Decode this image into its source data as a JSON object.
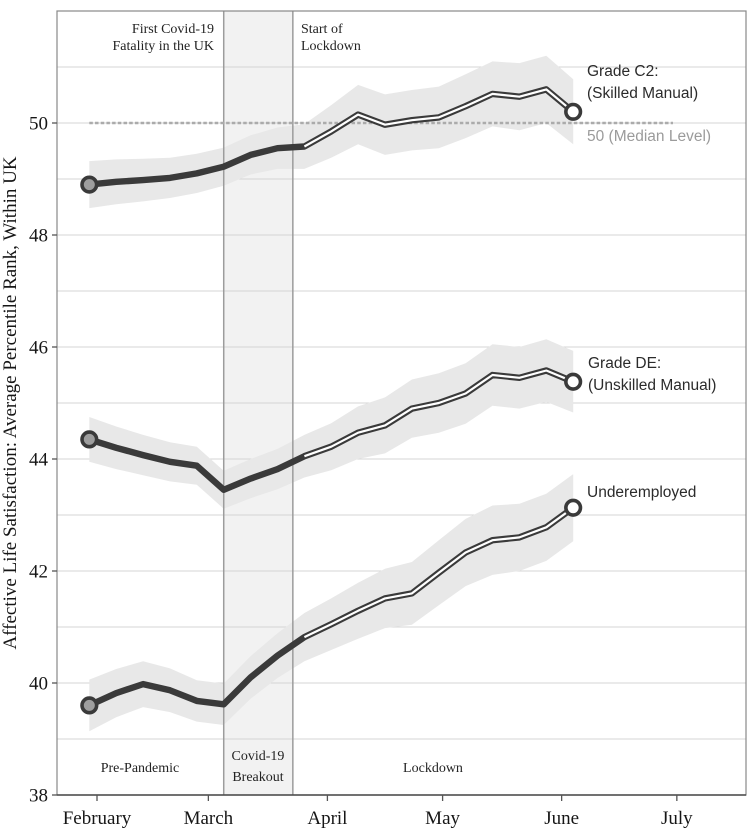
{
  "chart_data": {
    "type": "line",
    "title": "",
    "xlabel": "",
    "ylabel": "Affective Life Satisfaction: Average Percentile Rank, Within UK",
    "ylim": [
      38,
      52
    ],
    "y_ticks": [
      38,
      40,
      42,
      44,
      46,
      48,
      50
    ],
    "grid": "horizontal gridlines every 1 unit from 39 to 51",
    "x_tick_labels": [
      "February",
      "March",
      "April",
      "May",
      "June",
      "July"
    ],
    "x_tick_days": [
      0,
      29,
      60,
      90,
      121,
      151
    ],
    "x_unit": "weekly observations, early 2020",
    "x_dates": [
      "Jan 30",
      "Feb 6",
      "Feb 13",
      "Feb 20",
      "Feb 27",
      "Mar 5",
      "Mar 12",
      "Mar 19",
      "Mar 26",
      "Apr 2",
      "Apr 9",
      "Apr 16",
      "Apr 23",
      "Apr 30",
      "May 7",
      "May 14",
      "May 21",
      "May 28",
      "Jun 4"
    ],
    "x_days": [
      -2,
      5,
      12,
      19,
      26,
      33,
      40,
      47,
      54,
      61,
      68,
      75,
      82,
      89,
      96,
      103,
      110,
      117,
      124
    ],
    "series": [
      {
        "name": "Grade C2: (Skilled Manual)",
        "label_lines": [
          "Grade C2:",
          "(Skilled Manual)"
        ],
        "values": [
          48.9,
          48.95,
          48.98,
          49.02,
          49.1,
          49.22,
          49.43,
          49.55,
          49.58,
          49.85,
          50.15,
          49.97,
          50.05,
          50.1,
          50.3,
          50.52,
          50.47,
          50.6,
          50.2
        ],
        "ci_halfwidth": [
          0.42,
          0.4,
          0.38,
          0.36,
          0.35,
          0.34,
          0.35,
          0.37,
          0.4,
          0.47,
          0.53,
          0.54,
          0.54,
          0.55,
          0.57,
          0.58,
          0.6,
          0.6,
          0.58
        ]
      },
      {
        "name": "Grade DE: (Unskilled Manual)",
        "label_lines": [
          "Grade DE:",
          "(Unskilled Manual)"
        ],
        "values": [
          44.35,
          44.2,
          44.07,
          43.95,
          43.88,
          43.45,
          43.65,
          43.82,
          44.05,
          44.22,
          44.47,
          44.6,
          44.9,
          45.0,
          45.17,
          45.5,
          45.45,
          45.58,
          45.38
        ],
        "ci_halfwidth": [
          0.4,
          0.38,
          0.36,
          0.35,
          0.34,
          0.34,
          0.35,
          0.36,
          0.38,
          0.42,
          0.47,
          0.5,
          0.52,
          0.53,
          0.54,
          0.55,
          0.55,
          0.56,
          0.55
        ]
      },
      {
        "name": "Underemployed",
        "label_lines": [
          "Underemployed"
        ],
        "values": [
          39.6,
          39.82,
          39.98,
          39.87,
          39.68,
          39.62,
          40.1,
          40.49,
          40.82,
          41.05,
          41.29,
          41.51,
          41.6,
          41.97,
          42.33,
          42.55,
          42.6,
          42.78,
          43.13
        ],
        "ci_halfwidth": [
          0.46,
          0.43,
          0.41,
          0.39,
          0.37,
          0.37,
          0.38,
          0.4,
          0.43,
          0.46,
          0.5,
          0.53,
          0.56,
          0.58,
          0.6,
          0.62,
          0.6,
          0.6,
          0.6
        ]
      }
    ],
    "reference_line": {
      "value": 50,
      "label": "50 (Median Level)",
      "style": "dashed",
      "from_day": -2,
      "to_day": 150
    },
    "events": [
      {
        "label_lines": [
          "First Covid-19",
          "Fatality in the UK"
        ],
        "day": 33
      },
      {
        "label_lines": [
          "Start of",
          "Lockdown"
        ],
        "day": 51
      }
    ],
    "periods": [
      {
        "label_lines": [
          "Pre-Pandemic"
        ],
        "from_day": -10.4,
        "to_day": 33,
        "shaded": false
      },
      {
        "label_lines": [
          "Covid-19",
          "Breakout"
        ],
        "from_day": 33,
        "to_day": 51,
        "shaded": true
      },
      {
        "label_lines": [
          "Lockdown"
        ],
        "from_day": 51,
        "to_day": 124,
        "shaded": false
      }
    ],
    "line_style_note": "lines solid before lockdown, white-cored double line after; gray-filled circle at first point, white-filled circle at last point",
    "legend_position": "labels at right end of each line",
    "colors": {
      "line": "#3a3a3a",
      "band": "#e8e8e8",
      "shaded_region": "#f2f2f2",
      "event_line": "#9c9c9c",
      "grid": "#d4d4d4",
      "border": "#888888",
      "axis": "#555555",
      "median_line": "#ababab",
      "median_label": "#9b9b9b",
      "start_marker_fill": "#9e9e9e",
      "end_marker_fill": "#ffffff",
      "white_core": "#ffffff"
    }
  }
}
